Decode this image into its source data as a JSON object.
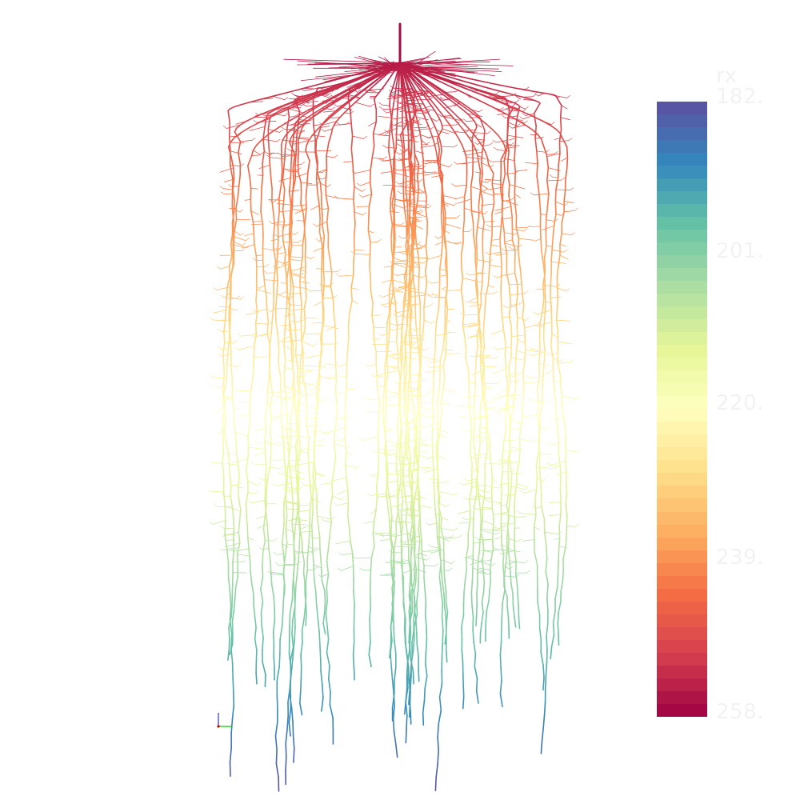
{
  "viewer": {
    "background_color": "#ffffff",
    "scene": "root-system-3d-render"
  },
  "colormap": {
    "name": "Spectral",
    "stops_top_to_bottom": [
      "#5e4fa2",
      "#3288bd",
      "#66c2a5",
      "#abdda4",
      "#e6f598",
      "#ffffbf",
      "#fee08b",
      "#fdae61",
      "#f46d43",
      "#d53e4f",
      "#9e0142"
    ],
    "bands": 48
  },
  "colorbar": {
    "title": "rx",
    "tick_labels": [
      "182.",
      "201.",
      "220.",
      "239.",
      "258."
    ]
  },
  "axes_widget": {
    "x_color": "#00cc00",
    "y_color": "#3333cc",
    "origin_color": "#cc0000"
  }
}
